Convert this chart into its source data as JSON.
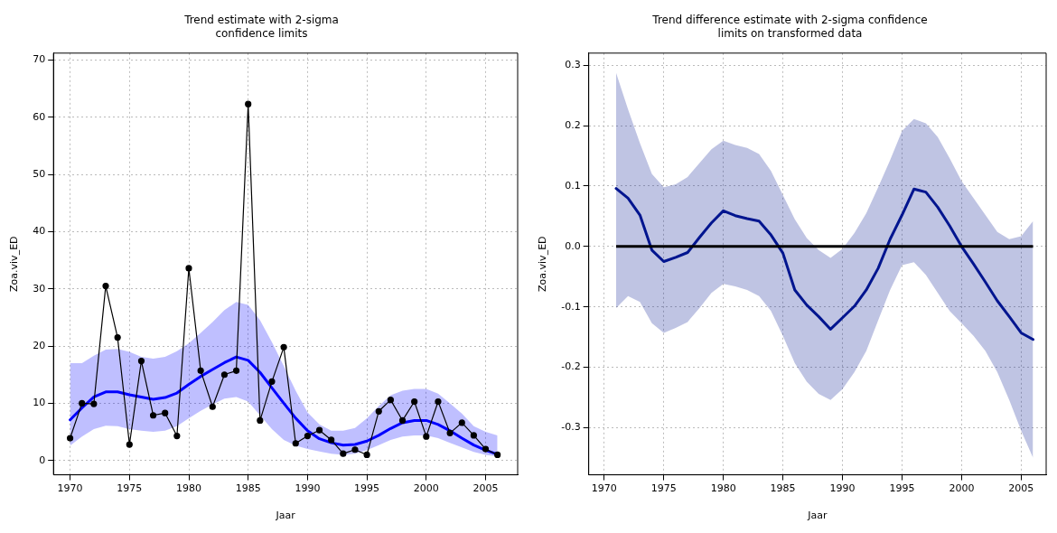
{
  "chart_data": [
    {
      "type": "line",
      "title": "Trend estimate with 2-sigma\nconfidence limits",
      "xlabel": "Jaar",
      "ylabel": "Zoa.viv_ED",
      "xlim": [
        1968.6,
        2007.7
      ],
      "xticks": [
        1970,
        1975,
        1980,
        1985,
        1990,
        1995,
        2000,
        2005
      ],
      "ylim": [
        -2.5,
        71.2
      ],
      "yticks": [
        0,
        10,
        20,
        30,
        40,
        50,
        60,
        70
      ],
      "grid": true,
      "line_style": "solid",
      "x": [
        1970,
        1971,
        1972,
        1973,
        1974,
        1975,
        1976,
        1977,
        1978,
        1979,
        1980,
        1981,
        1982,
        1983,
        1984,
        1985,
        1986,
        1987,
        1988,
        1989,
        1990,
        1991,
        1992,
        1993,
        1994,
        1995,
        1996,
        1997,
        1998,
        1999,
        2000,
        2001,
        2002,
        2003,
        2004,
        2005,
        2006
      ],
      "series": [
        {
          "color": "#000000",
          "marker": "circle",
          "values": [
            3.9,
            10.0,
            9.9,
            30.5,
            21.5,
            2.8,
            17.4,
            7.9,
            8.3,
            4.3,
            33.6,
            15.7,
            9.4,
            15.0,
            15.7,
            62.3,
            7.0,
            13.8,
            19.8,
            3.0,
            4.3,
            5.3,
            3.6,
            1.2,
            1.9,
            1.0,
            8.6,
            10.6,
            7.0,
            10.3,
            4.2,
            10.3,
            4.8,
            6.6,
            4.4,
            2.0,
            1.0
          ]
        },
        {
          "color": "#0000ff",
          "marker": "none",
          "values": [
            7.1,
            9.2,
            11.1,
            12.0,
            12.0,
            11.5,
            11.1,
            10.7,
            11.0,
            11.8,
            13.3,
            14.7,
            15.9,
            17.1,
            18.1,
            17.5,
            15.4,
            12.7,
            10.0,
            7.4,
            5.2,
            3.8,
            3.1,
            2.7,
            2.8,
            3.4,
            4.4,
            5.6,
            6.6,
            7.0,
            7.0,
            6.3,
            5.2,
            3.9,
            2.7,
            1.8,
            1.1
          ],
          "lower": [
            2.6,
            4.2,
            5.5,
            6.1,
            6.0,
            5.5,
            5.2,
            5.0,
            5.2,
            6.0,
            7.4,
            8.7,
            9.8,
            10.8,
            11.1,
            10.3,
            7.9,
            5.5,
            3.6,
            2.6,
            2.0,
            1.6,
            1.2,
            1.0,
            1.2,
            1.8,
            2.7,
            3.6,
            4.2,
            4.4,
            4.4,
            3.9,
            3.1,
            2.3,
            1.5,
            1.0,
            0.7
          ],
          "upper": [
            17.0,
            17.0,
            18.3,
            19.4,
            19.5,
            19.0,
            18.1,
            17.8,
            18.1,
            19.1,
            20.5,
            22.3,
            24.2,
            26.3,
            27.7,
            27.2,
            24.5,
            20.7,
            16.5,
            12.2,
            8.4,
            6.3,
            5.2,
            5.2,
            5.7,
            7.4,
            9.5,
            11.4,
            12.2,
            12.5,
            12.5,
            11.7,
            10.0,
            8.2,
            6.0,
            5.0,
            4.4
          ]
        }
      ]
    },
    {
      "type": "line",
      "title": "Trend difference estimate with 2-sigma confidence\nlimits on transformed data",
      "xlabel": "Jaar",
      "ylabel": "Zoa.viv_ED",
      "xlim": [
        1968.7,
        2007.1
      ],
      "xticks": [
        1970,
        1975,
        1980,
        1985,
        1990,
        1995,
        2000,
        2005
      ],
      "ylim": [
        -0.378,
        0.32
      ],
      "yticks": [
        -0.3,
        -0.2,
        -0.1,
        {
          "value": 0,
          "label": "0.0"
        },
        0.1,
        0.2,
        0.3
      ],
      "grid": true,
      "line_style": "solid",
      "ref_lines": [
        {
          "axis": "y",
          "value": 0,
          "color": "#000000"
        }
      ],
      "x": [
        1971,
        1972,
        1973,
        1974,
        1975,
        1976,
        1977,
        1978,
        1979,
        1980,
        1981,
        1982,
        1983,
        1984,
        1985,
        1986,
        1987,
        1988,
        1989,
        1990,
        1991,
        1992,
        1993,
        1994,
        1995,
        1996,
        1997,
        1998,
        1999,
        2000,
        2001,
        2002,
        2003,
        2004,
        2005,
        2006
      ],
      "series": [
        {
          "color": "#00158f",
          "marker": "none",
          "values": [
            0.096,
            0.08,
            0.052,
            -0.006,
            -0.025,
            -0.018,
            -0.01,
            0.015,
            0.039,
            0.059,
            0.051,
            0.046,
            0.042,
            0.019,
            -0.011,
            -0.072,
            -0.097,
            -0.116,
            -0.137,
            -0.118,
            -0.099,
            -0.072,
            -0.036,
            0.012,
            0.052,
            0.095,
            0.09,
            0.065,
            0.034,
            0.0,
            -0.029,
            -0.059,
            -0.09,
            -0.116,
            -0.143,
            -0.154
          ],
          "lower": [
            -0.102,
            -0.082,
            -0.092,
            -0.127,
            -0.143,
            -0.135,
            -0.125,
            -0.102,
            -0.077,
            -0.062,
            -0.066,
            -0.072,
            -0.082,
            -0.107,
            -0.148,
            -0.193,
            -0.224,
            -0.244,
            -0.254,
            -0.236,
            -0.208,
            -0.173,
            -0.122,
            -0.072,
            -0.031,
            -0.026,
            -0.047,
            -0.077,
            -0.107,
            -0.127,
            -0.148,
            -0.173,
            -0.208,
            -0.254,
            -0.305,
            -0.35
          ],
          "upper": [
            0.287,
            0.227,
            0.171,
            0.12,
            0.098,
            0.103,
            0.115,
            0.138,
            0.161,
            0.175,
            0.168,
            0.163,
            0.153,
            0.125,
            0.085,
            0.045,
            0.014,
            -0.006,
            -0.019,
            -0.004,
            0.022,
            0.055,
            0.098,
            0.143,
            0.191,
            0.211,
            0.204,
            0.181,
            0.146,
            0.108,
            0.08,
            0.052,
            0.024,
            0.012,
            0.017,
            0.042
          ]
        }
      ]
    }
  ]
}
